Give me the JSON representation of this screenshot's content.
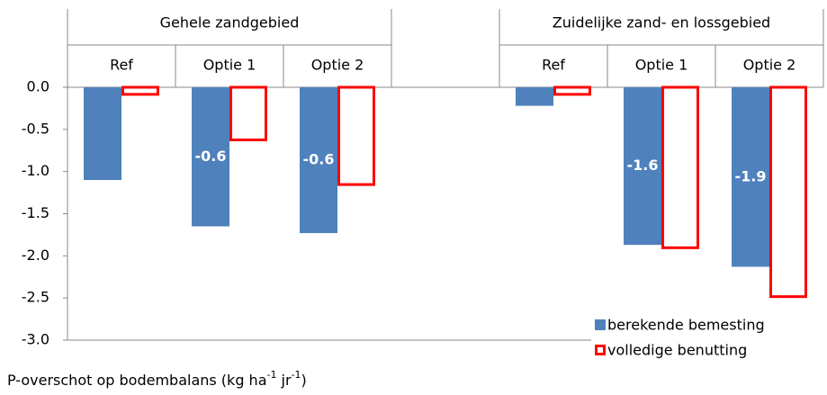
{
  "chart_data": {
    "type": "bar",
    "group_labels": [
      "Gehele zandgebied",
      "Zuidelijke zand- en lossgebied"
    ],
    "categories": [
      "Ref",
      "Optie 1",
      "Optie 2",
      null,
      "Ref",
      "Optie 1",
      "Optie 2"
    ],
    "series": [
      {
        "name": "berekende bemesting",
        "color": "#4f81bd",
        "style": "filled",
        "values": [
          -1.1,
          -1.65,
          -1.73,
          null,
          -0.22,
          -1.87,
          -2.13
        ]
      },
      {
        "name": "volledige benutting",
        "color": "#ff0000",
        "style": "outline",
        "values": [
          -0.1,
          -0.64,
          -1.17,
          null,
          -0.1,
          -1.92,
          -2.5
        ]
      }
    ],
    "bar_annotations": [
      null,
      "-0.6",
      "-0.6",
      null,
      null,
      "-1.6",
      "-1.9"
    ],
    "ylabel": [
      "P-overschot op bodembalans (kg ha",
      "-1",
      " jr",
      "-1",
      ")"
    ],
    "ylim": [
      -3,
      0
    ],
    "yticks": [
      {
        "value": 0,
        "label": "0.0"
      },
      {
        "value": -0.5,
        "label": "-0.5"
      },
      {
        "value": -1,
        "label": "-1.0"
      },
      {
        "value": -1.5,
        "label": "-1.5"
      },
      {
        "value": -2,
        "label": "-2.0"
      },
      {
        "value": -2.5,
        "label": "-2.5"
      },
      {
        "value": -3,
        "label": "-3.0"
      }
    ],
    "legend": "lower right"
  }
}
